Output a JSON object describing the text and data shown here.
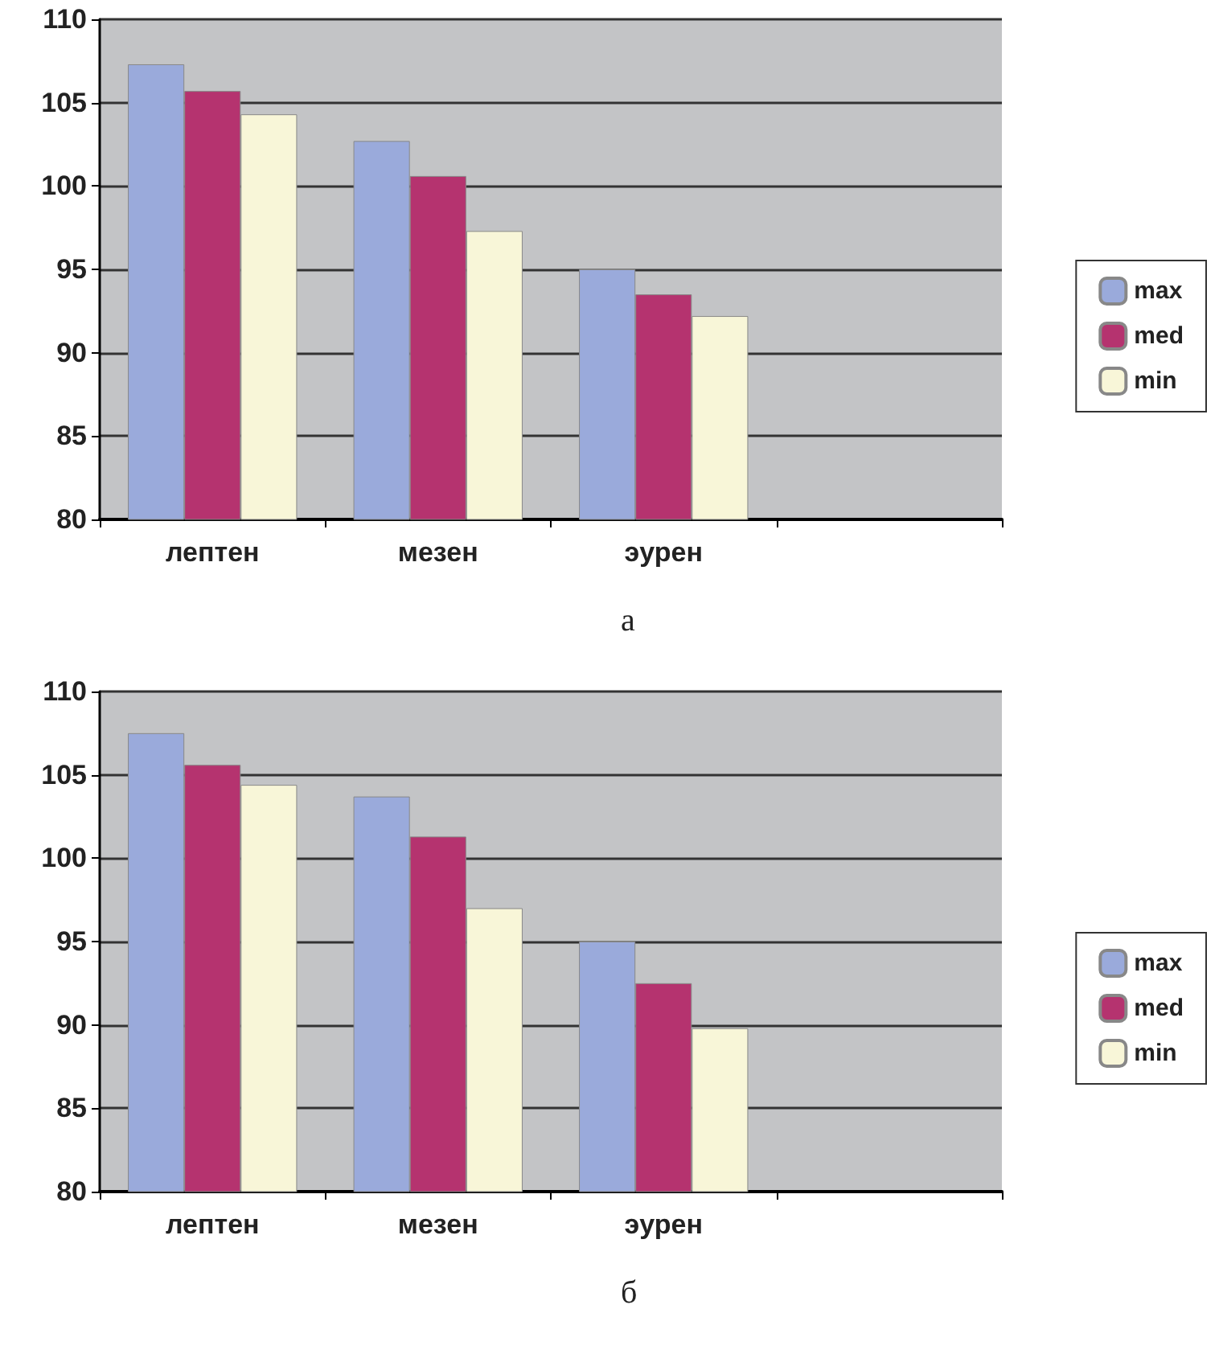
{
  "chart_data": [
    {
      "type": "bar",
      "categories": [
        "лептен",
        "мезен",
        "эурен",
        null
      ],
      "series": [
        {
          "name": "max",
          "color": "#9aaadb",
          "values": [
            107.3,
            102.7,
            95,
            null
          ]
        },
        {
          "name": "med",
          "color": "#b5336f",
          "values": [
            105.7,
            100.6,
            93.5,
            null
          ]
        },
        {
          "name": "min",
          "color": "#f8f6d8",
          "values": [
            104.3,
            97.3,
            92.2,
            null
          ]
        }
      ],
      "ylim": [
        80,
        110
      ],
      "yticks": [
        80,
        85,
        90,
        95,
        100,
        105,
        110
      ],
      "grid": "y",
      "legend": "right",
      "annotations": [
        "а"
      ]
    },
    {
      "type": "bar",
      "categories": [
        "лептен",
        "мезен",
        "эурен",
        null
      ],
      "series": [
        {
          "name": "max",
          "color": "#9aaadb",
          "values": [
            107.5,
            103.7,
            95,
            null
          ]
        },
        {
          "name": "med",
          "color": "#b5336f",
          "values": [
            105.6,
            101.3,
            92.5,
            null
          ]
        },
        {
          "name": "min",
          "color": "#f8f6d8",
          "values": [
            104.4,
            97,
            89.8,
            null
          ]
        }
      ],
      "ylim": [
        80,
        110
      ],
      "yticks": [
        80,
        85,
        90,
        95,
        100,
        105,
        110
      ],
      "grid": "y",
      "legend": "right",
      "annotations": [
        "б"
      ]
    }
  ]
}
